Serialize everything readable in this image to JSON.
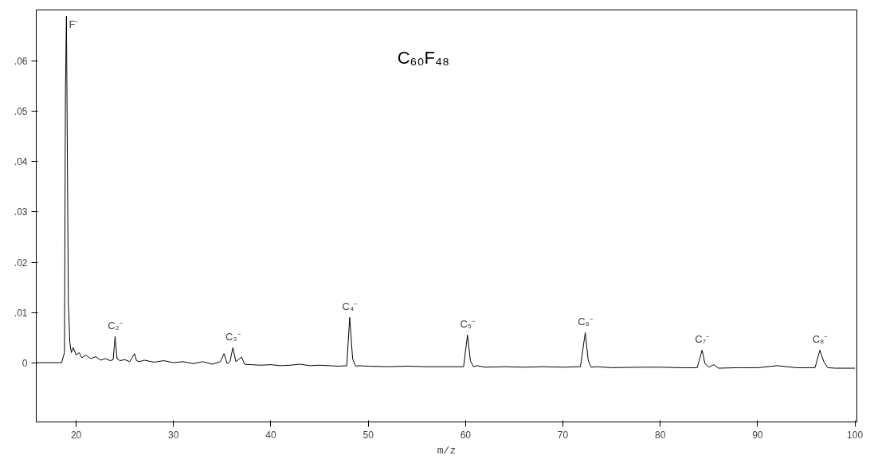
{
  "chart_data": {
    "type": "line",
    "title": "C₆₀F₄₈",
    "xlabel": "m/z",
    "x": [
      16,
      18.5,
      18.8,
      18.9,
      19.0,
      19.1,
      19.2,
      19.35,
      19.5,
      19.7,
      20,
      20.3,
      20.6,
      21,
      21.5,
      22,
      22.5,
      23,
      23.5,
      23.8,
      24.0,
      24.2,
      24.5,
      25,
      25.5,
      26,
      26.2,
      26.5,
      27,
      28,
      29,
      30,
      31,
      32,
      33,
      34,
      34.8,
      35.2,
      35.5,
      35.8,
      36.1,
      36.4,
      37,
      37.3,
      38,
      39,
      40,
      41,
      42,
      43,
      44,
      45,
      46,
      47,
      47.8,
      48.1,
      48.4,
      48.7,
      49,
      50,
      52,
      54,
      56,
      58,
      59.8,
      60.2,
      60.5,
      60.8,
      61.2,
      62,
      64,
      66,
      68,
      70,
      71.8,
      72.3,
      72.6,
      72.9,
      73.5,
      75,
      78,
      80,
      82,
      83.8,
      84.3,
      84.6,
      85,
      85.5,
      86,
      88,
      90,
      92,
      94,
      95.9,
      96.4,
      96.8,
      97.2,
      98,
      100
    ],
    "series": [
      {
        "color": "#000000",
        "values": [
          0,
          0,
          0.002,
          0.054,
          0.069,
          0.04,
          0.012,
          0.004,
          0.002,
          0.003,
          0.0015,
          0.002,
          0.001,
          0.0015,
          0.0008,
          0.0012,
          0.0005,
          0.0008,
          0.0004,
          0.0006,
          0.0052,
          0.0008,
          0.0004,
          0.0006,
          0.0002,
          0.0018,
          0.0004,
          0.0002,
          0.0005,
          0.0001,
          0.0004,
          0,
          0.0002,
          -0.0002,
          0.0002,
          -0.0003,
          0.0002,
          0.0018,
          -0.0002,
          0.0002,
          0.003,
          0.0002,
          0.0011,
          -0.0003,
          -0.0004,
          -0.0005,
          -0.0004,
          -0.0006,
          -0.0005,
          -0.0003,
          -0.0006,
          -0.0005,
          -0.0006,
          -0.0007,
          -0.0006,
          0.009,
          0.0008,
          -0.0007,
          -0.0006,
          -0.0007,
          -0.0008,
          -0.0007,
          -0.0008,
          -0.0008,
          -0.0008,
          0.0055,
          0.0004,
          -0.0008,
          -0.0006,
          -0.0009,
          -0.0008,
          -0.0009,
          -0.0008,
          -0.0009,
          -0.0008,
          0.006,
          0.0005,
          -0.0009,
          -0.0008,
          -0.001,
          -0.0009,
          -0.0009,
          -0.001,
          -0.001,
          0.0025,
          -0.0002,
          -0.0009,
          -0.0004,
          -0.0011,
          -0.001,
          -0.001,
          -0.0006,
          -0.001,
          -0.001,
          0.0025,
          0.0002,
          -0.001,
          -0.0011,
          -0.0011
        ]
      }
    ],
    "xlim": [
      15.9,
      100.2
    ],
    "ylim": [
      -0.0118,
      0.0702
    ],
    "xticks": [
      20,
      30,
      40,
      50,
      60,
      70,
      80,
      90,
      100
    ],
    "yticks": [
      {
        "value": 0,
        "label": "0"
      },
      {
        "value": 0.01,
        "label": ".01"
      },
      {
        "value": 0.02,
        "label": ".02"
      },
      {
        "value": 0.03,
        "label": ".03"
      },
      {
        "value": 0.04,
        "label": ".04"
      },
      {
        "value": 0.05,
        "label": ".05"
      },
      {
        "value": 0.06,
        "label": ".06"
      }
    ],
    "annotations": [
      {
        "text": "F⁻",
        "x": 19.0,
        "y": 0.069
      },
      {
        "text": "C₂⁻",
        "x": 24.0,
        "y": 0.0052
      },
      {
        "text": "C₃⁻",
        "x": 36.1,
        "y": 0.003
      },
      {
        "text": "C₄⁻",
        "x": 48.1,
        "y": 0.009
      },
      {
        "text": "C₅⁻",
        "x": 60.2,
        "y": 0.0055
      },
      {
        "text": "C₆⁻",
        "x": 72.3,
        "y": 0.006
      },
      {
        "text": "C₇⁻",
        "x": 84.3,
        "y": 0.0025
      },
      {
        "text": "C₈⁻",
        "x": 96.4,
        "y": 0.0025
      }
    ],
    "grid": false,
    "marker": "none",
    "line_style": "solid"
  }
}
